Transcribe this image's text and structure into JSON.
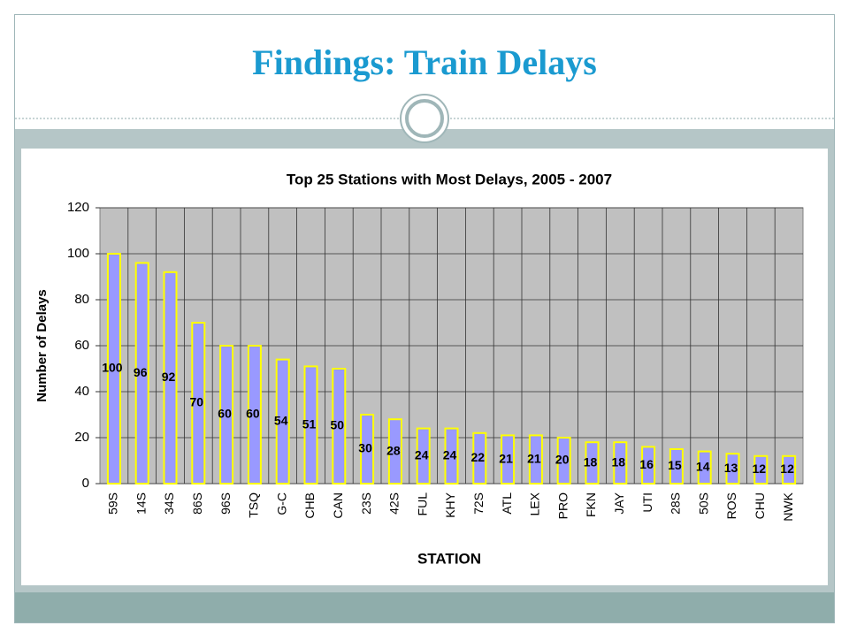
{
  "title": "Findings: Train Delays",
  "chart_data": {
    "type": "bar",
    "title": "Top 25 Stations with Most Delays, 2005 - 2007",
    "x_label": "STATION",
    "y_label": "Number of Delays",
    "categories": [
      "59S",
      "14S",
      "34S",
      "86S",
      "96S",
      "TSQ",
      "G-C",
      "CHB",
      "CAN",
      "23S",
      "42S",
      "FUL",
      "KHY",
      "72S",
      "ATL",
      "LEX",
      "PRO",
      "FKN",
      "JAY",
      "UTI",
      "28S",
      "50S",
      "ROS",
      "CHU",
      "NWK"
    ],
    "values": [
      100,
      96,
      92,
      70,
      60,
      60,
      54,
      51,
      50,
      30,
      28,
      24,
      24,
      22,
      21,
      21,
      20,
      18,
      18,
      16,
      15,
      14,
      13,
      12,
      12
    ],
    "color": "#9999ff",
    "edge_color": "#ffff00",
    "ylim": [
      0,
      120
    ],
    "yticks": [
      0,
      20,
      40,
      60,
      80,
      100,
      120
    ],
    "grid": true
  }
}
